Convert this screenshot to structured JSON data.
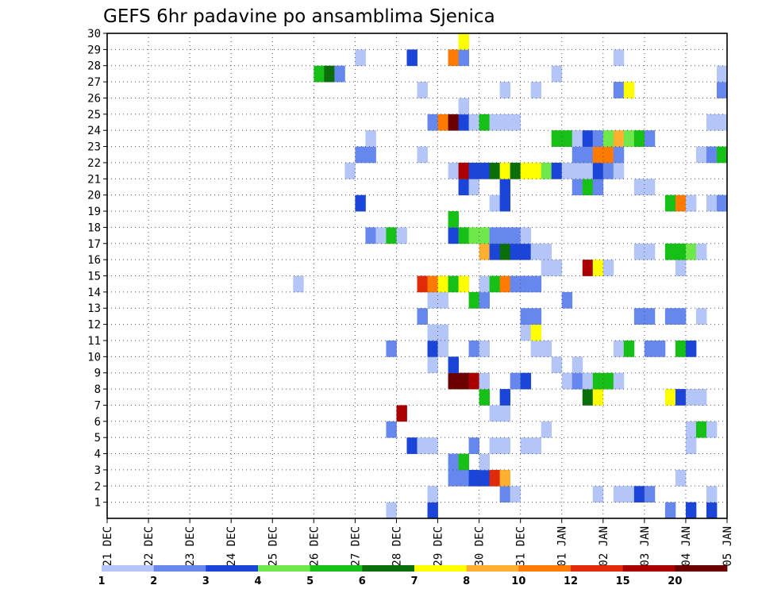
{
  "chart_data": {
    "type": "heatmap",
    "title": "GEFS 6hr padavine po ansamblima Sjenica",
    "xlabel": "",
    "ylabel": "",
    "x_tick_labels": [
      "21 DEC",
      "22 DEC",
      "23 DEC",
      "24 DEC",
      "25 DEC",
      "26 DEC",
      "27 DEC",
      "28 DEC",
      "29 DEC",
      "30 DEC",
      "31 DEC",
      "01 JAN",
      "02 JAN",
      "03 JAN",
      "04 JAN",
      "05 JAN"
    ],
    "y_tick_labels": [
      "1",
      "2",
      "3",
      "4",
      "5",
      "6",
      "7",
      "8",
      "9",
      "10",
      "11",
      "12",
      "13",
      "14",
      "15",
      "16",
      "17",
      "18",
      "19",
      "20",
      "21",
      "22",
      "23",
      "24",
      "25",
      "26",
      "27",
      "28",
      "29",
      "30"
    ],
    "ylim": [
      0,
      30
    ],
    "x_steps": 60,
    "steps_per_day": 4,
    "grid": true,
    "colorbar": {
      "labels": [
        "1",
        "2",
        "3",
        "4",
        "5",
        "6",
        "7",
        "8",
        "10",
        "12",
        "15",
        "20"
      ],
      "colors": [
        "#b3c6f7",
        "#6688ee",
        "#1a45d8",
        "#6ee84a",
        "#16c016",
        "#0a6e0a",
        "#ffff00",
        "#ffb030",
        "#ff7a00",
        "#e02a0a",
        "#aa0000",
        "#6a0000"
      ]
    },
    "rows": [
      {
        "member": 1,
        "cells": [
          [
            28,
            1
          ],
          [
            32,
            3
          ],
          [
            55,
            2
          ],
          [
            57,
            3
          ],
          [
            59,
            3
          ]
        ]
      },
      {
        "member": 2,
        "cells": [
          [
            32,
            1
          ],
          [
            39,
            2
          ],
          [
            40,
            1
          ],
          [
            48,
            1
          ],
          [
            50,
            1
          ],
          [
            51,
            1
          ],
          [
            52,
            3
          ],
          [
            53,
            2
          ],
          [
            59,
            1
          ]
        ]
      },
      {
        "member": 3,
        "cells": [
          [
            34,
            2
          ],
          [
            35,
            2
          ],
          [
            36,
            3
          ],
          [
            37,
            3
          ],
          [
            38,
            12
          ],
          [
            39,
            8
          ],
          [
            56,
            1
          ]
        ]
      },
      {
        "member": 4,
        "cells": [
          [
            34,
            2
          ],
          [
            35,
            5
          ],
          [
            37,
            1
          ]
        ]
      },
      {
        "member": 5,
        "cells": [
          [
            30,
            3
          ],
          [
            31,
            1
          ],
          [
            32,
            1
          ],
          [
            36,
            2
          ],
          [
            38,
            1
          ],
          [
            39,
            1
          ],
          [
            41,
            1
          ],
          [
            42,
            1
          ],
          [
            57,
            1
          ]
        ]
      },
      {
        "member": 6,
        "cells": [
          [
            28,
            2
          ],
          [
            43,
            1
          ],
          [
            57,
            1
          ],
          [
            58,
            5
          ],
          [
            59,
            1
          ]
        ]
      },
      {
        "member": 7,
        "cells": [
          [
            29,
            15
          ],
          [
            38,
            1
          ],
          [
            39,
            1
          ]
        ]
      },
      {
        "member": 8,
        "cells": [
          [
            37,
            5
          ],
          [
            39,
            3
          ],
          [
            47,
            6
          ],
          [
            48,
            7
          ],
          [
            55,
            7
          ],
          [
            56,
            3
          ],
          [
            57,
            1
          ],
          [
            58,
            1
          ]
        ]
      },
      {
        "member": 9,
        "cells": [
          [
            34,
            20
          ],
          [
            35,
            20
          ],
          [
            36,
            15
          ],
          [
            37,
            1
          ],
          [
            40,
            2
          ],
          [
            41,
            3
          ],
          [
            45,
            1
          ],
          [
            46,
            2
          ],
          [
            47,
            1
          ],
          [
            48,
            5
          ],
          [
            49,
            5
          ],
          [
            50,
            1
          ]
        ]
      },
      {
        "member": 10,
        "cells": [
          [
            32,
            1
          ],
          [
            34,
            3
          ],
          [
            44,
            1
          ],
          [
            46,
            1
          ]
        ]
      },
      {
        "member": 11,
        "cells": [
          [
            28,
            2
          ],
          [
            32,
            3
          ],
          [
            33,
            1
          ],
          [
            36,
            2
          ],
          [
            37,
            1
          ],
          [
            42,
            1
          ],
          [
            43,
            1
          ],
          [
            50,
            1
          ],
          [
            51,
            5
          ],
          [
            53,
            2
          ],
          [
            54,
            2
          ],
          [
            56,
            5
          ],
          [
            57,
            3
          ]
        ]
      },
      {
        "member": 12,
        "cells": [
          [
            32,
            1
          ],
          [
            33,
            1
          ],
          [
            41,
            1
          ],
          [
            42,
            7
          ]
        ]
      },
      {
        "member": 13,
        "cells": [
          [
            31,
            2
          ],
          [
            41,
            2
          ],
          [
            42,
            2
          ],
          [
            52,
            2
          ],
          [
            53,
            2
          ],
          [
            55,
            2
          ],
          [
            56,
            2
          ],
          [
            58,
            1
          ]
        ]
      },
      {
        "member": 14,
        "cells": [
          [
            32,
            1
          ],
          [
            33,
            1
          ],
          [
            36,
            5
          ],
          [
            37,
            2
          ],
          [
            45,
            2
          ]
        ]
      },
      {
        "member": 15,
        "cells": [
          [
            19,
            1
          ],
          [
            31,
            12
          ],
          [
            32,
            10
          ],
          [
            33,
            7
          ],
          [
            34,
            5
          ],
          [
            35,
            7
          ],
          [
            37,
            1
          ],
          [
            38,
            5
          ],
          [
            39,
            10
          ],
          [
            40,
            2
          ],
          [
            41,
            2
          ],
          [
            42,
            2
          ]
        ]
      },
      {
        "member": 16,
        "cells": [
          [
            43,
            1
          ],
          [
            44,
            1
          ],
          [
            47,
            15
          ],
          [
            48,
            7
          ],
          [
            49,
            1
          ],
          [
            56,
            1
          ]
        ]
      },
      {
        "member": 17,
        "cells": [
          [
            37,
            8
          ],
          [
            38,
            3
          ],
          [
            39,
            6
          ],
          [
            40,
            3
          ],
          [
            41,
            3
          ],
          [
            42,
            1
          ],
          [
            43,
            1
          ],
          [
            52,
            1
          ],
          [
            53,
            1
          ],
          [
            55,
            5
          ],
          [
            56,
            5
          ],
          [
            57,
            4
          ],
          [
            58,
            1
          ]
        ]
      },
      {
        "member": 18,
        "cells": [
          [
            26,
            2
          ],
          [
            27,
            1
          ],
          [
            28,
            5
          ],
          [
            29,
            1
          ],
          [
            34,
            3
          ],
          [
            35,
            5
          ],
          [
            36,
            4
          ],
          [
            37,
            4
          ],
          [
            38,
            2
          ],
          [
            39,
            2
          ],
          [
            40,
            2
          ],
          [
            41,
            1
          ]
        ]
      },
      {
        "member": 19,
        "cells": [
          [
            34,
            5
          ]
        ]
      },
      {
        "member": 20,
        "cells": [
          [
            25,
            3
          ],
          [
            38,
            1
          ],
          [
            39,
            3
          ],
          [
            55,
            5
          ],
          [
            56,
            10
          ],
          [
            57,
            1
          ],
          [
            59,
            1
          ],
          [
            60,
            2
          ]
        ]
      },
      {
        "member": 21,
        "cells": [
          [
            35,
            3
          ],
          [
            36,
            1
          ],
          [
            39,
            3
          ],
          [
            46,
            2
          ],
          [
            47,
            5
          ],
          [
            48,
            2
          ],
          [
            52,
            1
          ],
          [
            53,
            1
          ]
        ]
      },
      {
        "member": 22,
        "cells": [
          [
            24,
            1
          ],
          [
            34,
            1
          ],
          [
            35,
            15
          ],
          [
            36,
            3
          ],
          [
            37,
            3
          ],
          [
            38,
            6
          ],
          [
            39,
            7
          ],
          [
            40,
            6
          ],
          [
            41,
            7
          ],
          [
            42,
            7
          ],
          [
            43,
            4
          ],
          [
            44,
            3
          ],
          [
            45,
            1
          ],
          [
            46,
            1
          ],
          [
            47,
            1
          ],
          [
            48,
            3
          ],
          [
            49,
            2
          ],
          [
            50,
            1
          ]
        ]
      },
      {
        "member": 23,
        "cells": [
          [
            25,
            2
          ],
          [
            26,
            2
          ],
          [
            31,
            1
          ],
          [
            46,
            2
          ],
          [
            47,
            2
          ],
          [
            48,
            10
          ],
          [
            49,
            10
          ],
          [
            50,
            2
          ],
          [
            58,
            1
          ],
          [
            59,
            2
          ],
          [
            60,
            5
          ]
        ]
      },
      {
        "member": 24,
        "cells": [
          [
            26,
            1
          ],
          [
            44,
            5
          ],
          [
            45,
            5
          ],
          [
            46,
            1
          ],
          [
            47,
            3
          ],
          [
            48,
            2
          ],
          [
            49,
            4
          ],
          [
            50,
            8
          ],
          [
            51,
            4
          ],
          [
            52,
            5
          ],
          [
            53,
            2
          ]
        ]
      },
      {
        "member": 25,
        "cells": [
          [
            32,
            2
          ],
          [
            33,
            10
          ],
          [
            34,
            20
          ],
          [
            35,
            3
          ],
          [
            36,
            1
          ],
          [
            37,
            5
          ],
          [
            38,
            1
          ],
          [
            39,
            1
          ],
          [
            40,
            1
          ],
          [
            59,
            1
          ],
          [
            60,
            1
          ]
        ]
      },
      {
        "member": 26,
        "cells": [
          [
            35,
            1
          ]
        ]
      },
      {
        "member": 27,
        "cells": [
          [
            31,
            1
          ],
          [
            39,
            1
          ],
          [
            42,
            1
          ],
          [
            50,
            2
          ],
          [
            51,
            7
          ],
          [
            60,
            2
          ]
        ]
      },
      {
        "member": 28,
        "cells": [
          [
            21,
            5
          ],
          [
            22,
            6
          ],
          [
            23,
            2
          ],
          [
            44,
            1
          ],
          [
            60,
            1
          ]
        ]
      },
      {
        "member": 29,
        "cells": [
          [
            25,
            1
          ],
          [
            30,
            3
          ],
          [
            34,
            10
          ],
          [
            35,
            2
          ],
          [
            50,
            1
          ]
        ]
      },
      {
        "member": 30,
        "cells": [
          [
            35,
            7
          ]
        ]
      }
    ]
  }
}
